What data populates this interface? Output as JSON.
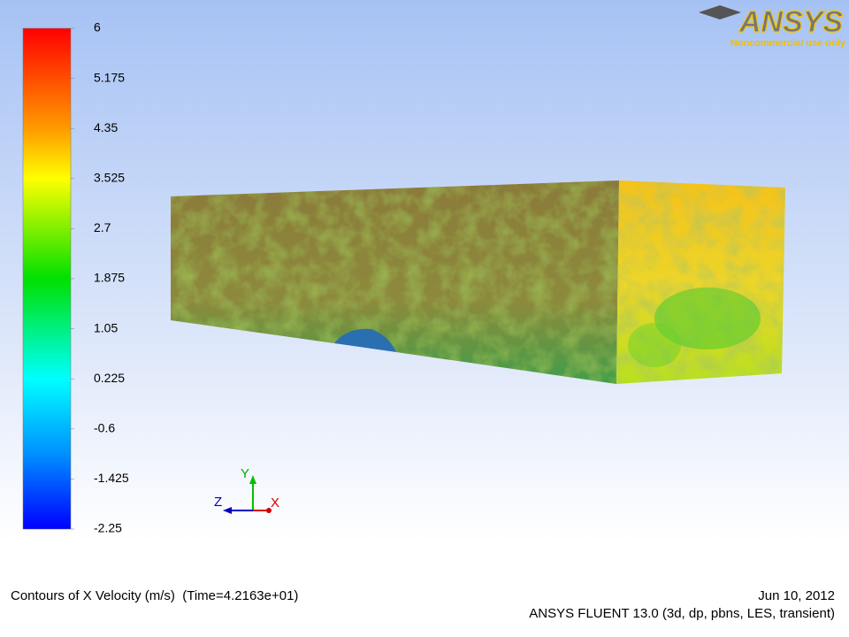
{
  "logo": {
    "name": "ANSYS",
    "tagline": "Noncommercial use only"
  },
  "colorbar": {
    "lim": [
      -2.25,
      6
    ],
    "ticks": [
      6,
      5.175,
      4.35,
      3.525,
      2.7,
      1.875,
      1.05,
      0.225,
      -0.6,
      -1.425,
      -2.25
    ]
  },
  "triad": {
    "x": "X",
    "y": "Y",
    "z": "Z"
  },
  "footer": {
    "title": "Contours of X Velocity (m/s)  (Time=4.2163e+01)",
    "date": "Jun 10, 2012",
    "solver": "ANSYS FLUENT 13.0 (3d, dp, pbns, LES, transient)"
  }
}
